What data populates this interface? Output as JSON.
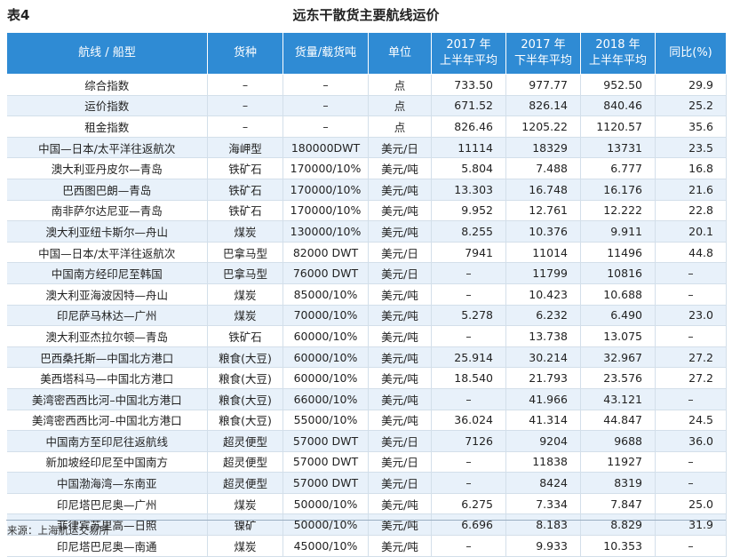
{
  "caption": {
    "label": "表4",
    "title": "远东干散货主要航线运价"
  },
  "columns": [
    {
      "line1": "航线 / 船型",
      "line2": ""
    },
    {
      "line1": "货种",
      "line2": ""
    },
    {
      "line1": "货量/载货吨",
      "line2": ""
    },
    {
      "line1": "单位",
      "line2": ""
    },
    {
      "line1": "2017 年",
      "line2": "上半年平均"
    },
    {
      "line1": "2017 年",
      "line2": "下半年平均"
    },
    {
      "line1": "2018 年",
      "line2": "上半年平均"
    },
    {
      "line1": "同比(%)",
      "line2": ""
    }
  ],
  "rows": [
    [
      "综合指数",
      "–",
      "–",
      "点",
      "733.50",
      "977.77",
      "952.50",
      "29.9"
    ],
    [
      "运价指数",
      "–",
      "–",
      "点",
      "671.52",
      "826.14",
      "840.46",
      "25.2"
    ],
    [
      "租金指数",
      "–",
      "–",
      "点",
      "826.46",
      "1205.22",
      "1120.57",
      "35.6"
    ],
    [
      "中国—日本/太平洋往返航次",
      "海岬型",
      "180000DWT",
      "美元/日",
      "11114",
      "18329",
      "13731",
      "23.5"
    ],
    [
      "澳大利亚丹皮尔—青岛",
      "铁矿石",
      "170000/10%",
      "美元/吨",
      "5.804",
      "7.488",
      "6.777",
      "16.8"
    ],
    [
      "巴西图巴朗—青岛",
      "铁矿石",
      "170000/10%",
      "美元/吨",
      "13.303",
      "16.748",
      "16.176",
      "21.6"
    ],
    [
      "南非萨尔达尼亚—青岛",
      "铁矿石",
      "170000/10%",
      "美元/吨",
      "9.952",
      "12.761",
      "12.222",
      "22.8"
    ],
    [
      "澳大利亚纽卡斯尔—舟山",
      "煤炭",
      "130000/10%",
      "美元/吨",
      "8.255",
      "10.376",
      "9.911",
      "20.1"
    ],
    [
      "中国—日本/太平洋往返航次",
      "巴拿马型",
      "82000 DWT",
      "美元/日",
      "7941",
      "11014",
      "11496",
      "44.8"
    ],
    [
      "中国南方经印尼至韩国",
      "巴拿马型",
      "76000 DWT",
      "美元/日",
      "–",
      "11799",
      "10816",
      "–"
    ],
    [
      "澳大利亚海波因特—舟山",
      "煤炭",
      "85000/10%",
      "美元/吨",
      "–",
      "10.423",
      "10.688",
      "–"
    ],
    [
      "印尼萨马林达—广州",
      "煤炭",
      "70000/10%",
      "美元/吨",
      "5.278",
      "6.232",
      "6.490",
      "23.0"
    ],
    [
      "澳大利亚杰拉尔顿—青岛",
      "铁矿石",
      "60000/10%",
      "美元/吨",
      "–",
      "13.738",
      "13.075",
      "–"
    ],
    [
      "巴西桑托斯—中国北方港口",
      "粮食(大豆)",
      "60000/10%",
      "美元/吨",
      "25.914",
      "30.214",
      "32.967",
      "27.2"
    ],
    [
      "美西塔科马—中国北方港口",
      "粮食(大豆)",
      "60000/10%",
      "美元/吨",
      "18.540",
      "21.793",
      "23.576",
      "27.2"
    ],
    [
      "美湾密西西比河–中国北方港口",
      "粮食(大豆)",
      "66000/10%",
      "美元/吨",
      "–",
      "41.966",
      "43.121",
      "–"
    ],
    [
      "美湾密西西比河–中国北方港口",
      "粮食(大豆)",
      "55000/10%",
      "美元/吨",
      "36.024",
      "41.314",
      "44.847",
      "24.5"
    ],
    [
      "中国南方至印尼往返航线",
      "超灵便型",
      "57000 DWT",
      "美元/日",
      "7126",
      "9204",
      "9688",
      "36.0"
    ],
    [
      "新加坡经印尼至中国南方",
      "超灵便型",
      "57000 DWT",
      "美元/日",
      "–",
      "11838",
      "11927",
      "–"
    ],
    [
      "中国渤海湾—东南亚",
      "超灵便型",
      "57000 DWT",
      "美元/日",
      "–",
      "8424",
      "8319",
      "–"
    ],
    [
      "印尼塔巴尼奥—广州",
      "煤炭",
      "50000/10%",
      "美元/吨",
      "6.275",
      "7.334",
      "7.847",
      "25.0"
    ],
    [
      "菲律宾苏里高—日照",
      "镍矿",
      "50000/10%",
      "美元/吨",
      "6.696",
      "8.183",
      "8.829",
      "31.9"
    ],
    [
      "印尼塔巴尼奥—南通",
      "煤炭",
      "45000/10%",
      "美元/吨",
      "–",
      "9.933",
      "10.353",
      "–"
    ]
  ],
  "source": "来源：上海航运交易所"
}
